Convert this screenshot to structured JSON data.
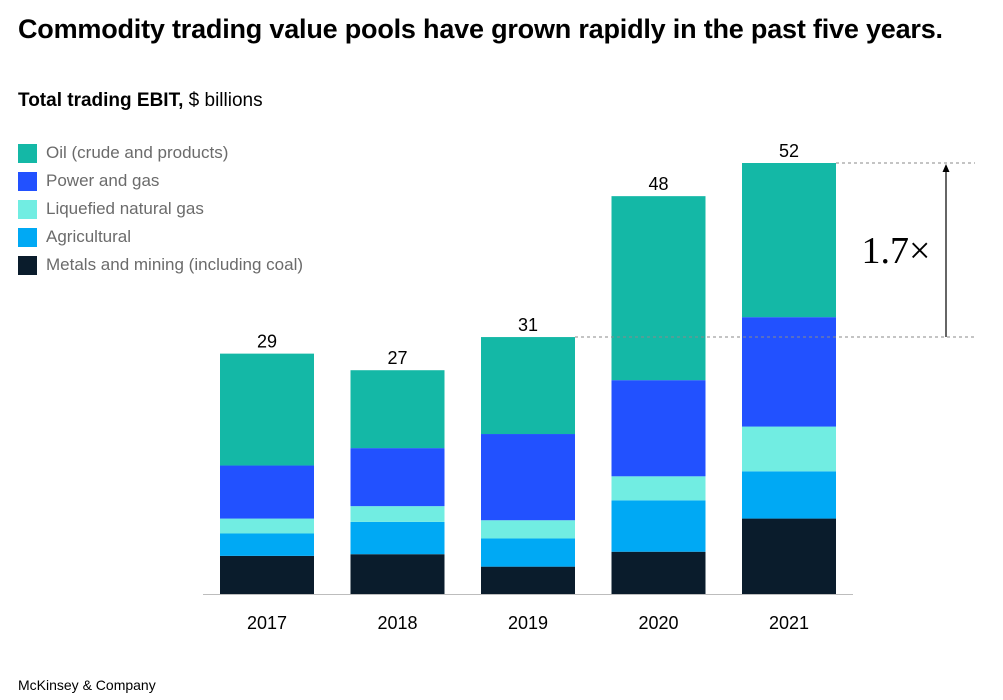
{
  "title": "Commodity trading value pools have grown rapidly in the past five years.",
  "subtitle": {
    "bold": "Total trading EBIT,",
    "unit": "$ billions"
  },
  "footer": "McKinsey & Company",
  "annotation": {
    "label": "1.7×",
    "from_total": 31,
    "to_total": 52
  },
  "chart_data": {
    "type": "bar",
    "stacked": true,
    "title": "Total trading EBIT, $ billions",
    "xlabel": "",
    "ylabel": "",
    "ylim": [
      0,
      52
    ],
    "categories": [
      "2017",
      "2018",
      "2019",
      "2020",
      "2021"
    ],
    "totals": [
      29,
      27,
      31,
      48,
      52
    ],
    "series": [
      {
        "name": "Metals and mining (including coal)",
        "color": "#0a1c2c",
        "values": [
          4.6,
          4.8,
          3.3,
          5.1,
          9.1
        ]
      },
      {
        "name": "Agricultural",
        "color": "#00a9f4",
        "values": [
          2.7,
          3.9,
          3.4,
          6.2,
          5.7
        ]
      },
      {
        "name": "Liquefied natural gas",
        "color": "#71ede2",
        "values": [
          1.8,
          1.9,
          2.2,
          2.9,
          5.4
        ]
      },
      {
        "name": "Power and gas",
        "color": "#2251ff",
        "values": [
          6.4,
          7.0,
          10.4,
          11.6,
          13.2
        ]
      },
      {
        "name": "Oil (crude and products)",
        "color": "#14b8a6",
        "values": [
          13.5,
          9.4,
          11.7,
          22.2,
          18.6
        ]
      }
    ],
    "legend": [
      {
        "label": "Oil (crude and products)",
        "color": "#14b8a6"
      },
      {
        "label": "Power and gas",
        "color": "#2251ff"
      },
      {
        "label": "Liquefied natural gas",
        "color": "#71ede2"
      },
      {
        "label": "Agricultural",
        "color": "#00a9f4"
      },
      {
        "label": "Metals and mining (including coal)",
        "color": "#0a1c2c"
      }
    ]
  }
}
